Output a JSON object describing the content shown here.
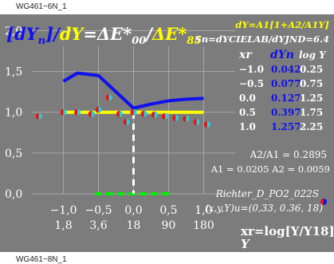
{
  "chart_data": {
    "type": "line",
    "title_parts": {
      "dyn": "dY",
      "dyn_sub": "n",
      "sep1": "]/",
      "dy": "dY",
      "eq": "=ΔE*",
      "sub00": "00",
      "slash": "/",
      "de": "ΔE*",
      "sub85": "85"
    },
    "formula_line1": "dY=A1[1+A2/A1Y]",
    "formula_line2": "Sn=dYCIELAB/dYJND=6.4",
    "table": {
      "headers": [
        "xr",
        "dYn",
        "log Y"
      ],
      "rows": [
        [
          "−1.0",
          "0.042",
          "0.25"
        ],
        [
          "−0.5",
          "0.077",
          "0.75"
        ],
        [
          "0.0",
          "0.127",
          "1.25"
        ],
        [
          "0.5",
          "0.397",
          "1.75"
        ],
        [
          "1.0",
          "1.257",
          "2.25"
        ]
      ]
    },
    "ratio_text": "A2/A1 = 0.2895",
    "coef_text": "A1 = 0.0205  A2 = 0.0059",
    "source_name": "Richter_D_PO2_022S",
    "source_coords": "(x,y,Y)u=(0,33, 0.36, 18)",
    "y_ticks": [
      "0,0",
      "0,5",
      "1,0",
      "1,5",
      "2,0"
    ],
    "y_tick_values": [
      0.0,
      0.5,
      1.0,
      1.5,
      2.0
    ],
    "x_ticks": [
      "−1,0",
      "−0,5",
      "0,0",
      "0,5",
      "1,0"
    ],
    "x_tick_values": [
      -1.0,
      -0.5,
      0.0,
      0.5,
      1.0
    ],
    "x_ticks2": [
      "1,8",
      "3,6",
      "18",
      "90",
      "180"
    ],
    "x_label": "xr=log[Y/Y18]",
    "x_label2": "Y",
    "xlim": [
      -1.45,
      1.45
    ],
    "ylim": [
      0.0,
      2.2
    ],
    "grid": true,
    "series": [
      {
        "color": "#1010ee",
        "x": [
          -1.0,
          -0.8,
          -0.5,
          -0.25,
          0.0,
          0.25,
          0.5,
          0.75,
          1.0
        ],
        "values": [
          1.38,
          1.48,
          1.45,
          1.25,
          1.05,
          1.1,
          1.14,
          1.16,
          1.17
        ]
      },
      {
        "color": "#ffff00",
        "x": [
          -1.0,
          1.0
        ],
        "values": [
          1.0,
          1.0
        ]
      }
    ],
    "markers": {
      "x": [
        -1.35,
        -1.0,
        -0.8,
        -0.6,
        -0.5,
        -0.35,
        -0.2,
        -0.1,
        0.0,
        0.15,
        0.3,
        0.45,
        0.6,
        0.75,
        0.9,
        1.05
      ],
      "values": [
        0.95,
        1.0,
        1.0,
        0.98,
        1.03,
        1.18,
        0.98,
        0.88,
        1.0,
        0.98,
        0.97,
        0.95,
        0.93,
        0.92,
        0.88,
        0.85
      ]
    },
    "green_segment": {
      "x": [
        -0.55,
        0.55
      ],
      "value": 0.0
    },
    "vertical_line_x": 0.0
  },
  "labels": {
    "tag_top": "WG461−6N_1",
    "tag_bottom": "WG461−8N_1"
  },
  "colors": {
    "panel": "#7c7c7c",
    "grid": "#a8a8a8",
    "blue": "#1010ee",
    "yellow": "#ffff00",
    "white": "#ffffff",
    "green": "#00ee00"
  }
}
